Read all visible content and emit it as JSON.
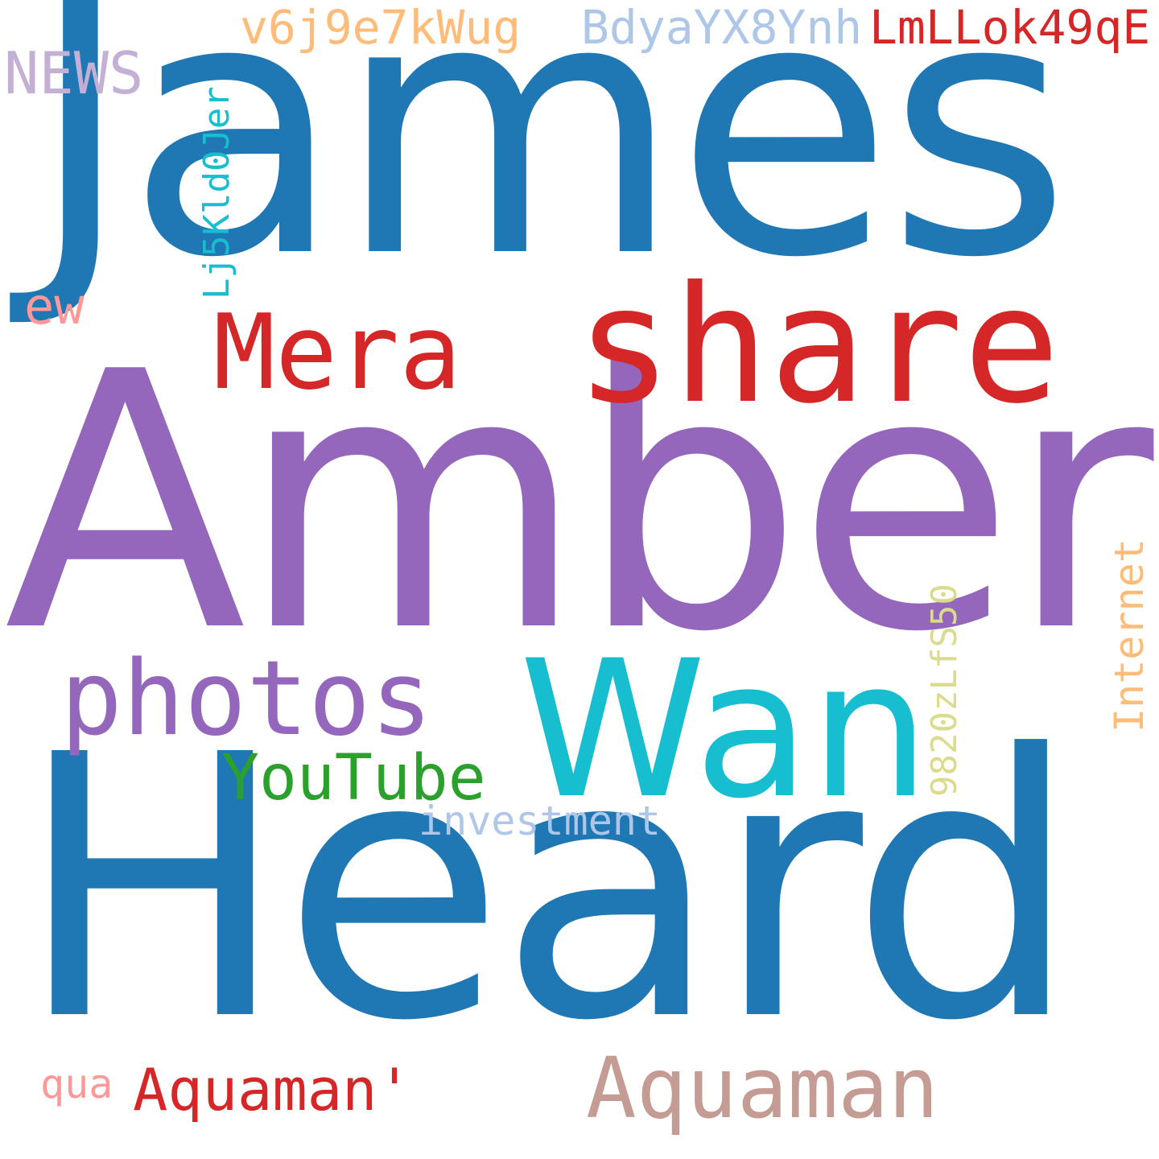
{
  "word_cloud": {
    "background": "#ffffff",
    "words": {
      "james": {
        "text": "James",
        "color": "#1f77b4"
      },
      "amber": {
        "text": "Amber",
        "color": "#9467bd"
      },
      "heard": {
        "text": "Heard",
        "color": "#1f77b4"
      },
      "share": {
        "text": "share",
        "color": "#d62728"
      },
      "mera": {
        "text": "Mera",
        "color": "#d62728"
      },
      "wan": {
        "text": "Wan",
        "color": "#17becf"
      },
      "photos": {
        "text": "photos",
        "color": "#9467bd"
      },
      "youtube": {
        "text": "YouTube",
        "color": "#2ca02c"
      },
      "investment": {
        "text": "investment",
        "color": "#aec7e8"
      },
      "aquaman": {
        "text": "Aquaman",
        "color": "#c49c94"
      },
      "aquaman_q": {
        "text": "Aquaman'",
        "color": "#d62728"
      },
      "qua": {
        "text": "qua",
        "color": "#ff9896"
      },
      "news": {
        "text": "NEWS",
        "color": "#c5b0d5"
      },
      "ew": {
        "text": "ew",
        "color": "#ff9896"
      },
      "v6j": {
        "text": "v6j9e7kWug",
        "color": "#ffbb78"
      },
      "bdya": {
        "text": "BdyaYX8Ynh",
        "color": "#aec7e8"
      },
      "lml": {
        "text": "LmLLok49qE",
        "color": "#d62728"
      },
      "lj5": {
        "text": "Lj5Kld0Jer",
        "color": "#17becf"
      },
      "n982": {
        "text": "9820zLfS50",
        "color": "#dbdb8d"
      },
      "internet": {
        "text": "Internet",
        "color": "#ffbb78"
      }
    }
  }
}
